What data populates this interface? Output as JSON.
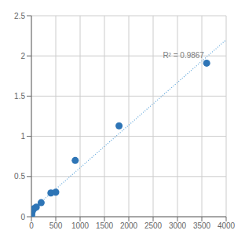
{
  "chart_data": {
    "type": "scatter",
    "x": [
      6.25,
      12.5,
      25,
      50,
      100,
      200,
      400,
      500,
      900,
      1800,
      3600
    ],
    "values": [
      0.023,
      0.055,
      0.082,
      0.1,
      0.12,
      0.175,
      0.295,
      0.305,
      0.7,
      1.13,
      1.91
    ],
    "color": "#2e75b6",
    "trendline": {
      "x": [
        0,
        4000
      ],
      "values": [
        0.07891,
        2.20012
      ],
      "color": "#5ba3d9",
      "line_style": "dotted"
    },
    "annotations": [
      {
        "text": "R² = 0.9867",
        "x": 2700,
        "y": 1.97,
        "color": "#808080"
      }
    ],
    "xlim": [
      0,
      4000
    ],
    "ylim": [
      0,
      2.5
    ],
    "xticks": [
      0,
      500,
      1000,
      1500,
      2000,
      2500,
      3000,
      3500,
      4000
    ],
    "yticks": [
      0,
      0.5,
      1.0,
      1.5,
      2.0,
      2.5
    ],
    "grid": true
  }
}
